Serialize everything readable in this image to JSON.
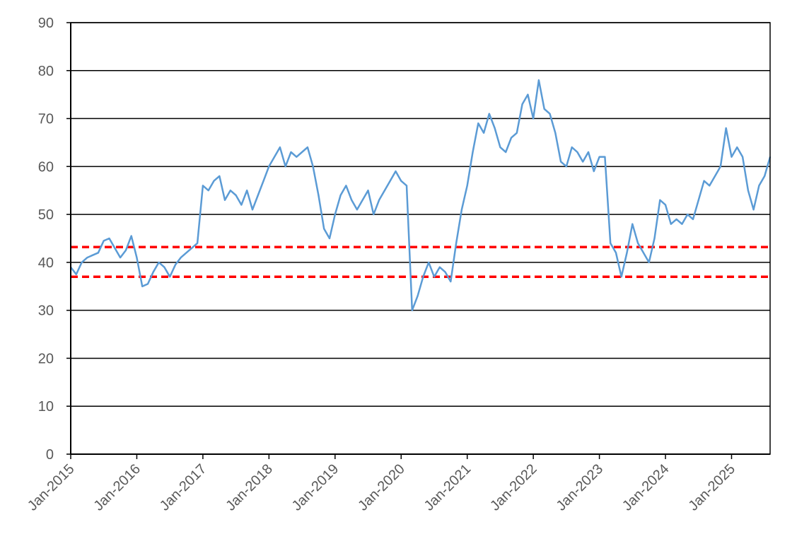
{
  "chart_data": {
    "type": "line",
    "title": "",
    "xlabel": "",
    "ylabel": "",
    "ylim": [
      0,
      90
    ],
    "yticks": [
      0,
      10,
      20,
      30,
      40,
      50,
      60,
      70,
      80,
      90
    ],
    "xlim": [
      "2015-01",
      "2025-08"
    ],
    "xticks": [
      {
        "label": "Jan-2015",
        "date": "2015-01"
      },
      {
        "label": "Jan-2016",
        "date": "2016-01"
      },
      {
        "label": "Jan-2017",
        "date": "2017-01"
      },
      {
        "label": "Jan-2018",
        "date": "2018-01"
      },
      {
        "label": "Jan-2019",
        "date": "2019-01"
      },
      {
        "label": "Jan-2020",
        "date": "2020-01"
      },
      {
        "label": "Jan-2021",
        "date": "2021-01"
      },
      {
        "label": "Jan-2022",
        "date": "2022-01"
      },
      {
        "label": "Jan-2023",
        "date": "2023-01"
      },
      {
        "label": "Jan-2024",
        "date": "2024-01"
      },
      {
        "label": "Jan-2025",
        "date": "2025-01"
      }
    ],
    "grid": "horizontal",
    "legend": "none",
    "series": [
      {
        "color": "#5b9bd5",
        "points": [
          [
            "2015-01",
            39
          ],
          [
            "2015-02",
            37.5
          ],
          [
            "2015-03",
            40
          ],
          [
            "2015-04",
            41
          ],
          [
            "2015-05",
            41.5
          ],
          [
            "2015-06",
            42
          ],
          [
            "2015-07",
            44.5
          ],
          [
            "2015-08",
            45
          ],
          [
            "2015-09",
            43
          ],
          [
            "2015-10",
            41
          ],
          [
            "2015-11",
            42.5
          ],
          [
            "2015-12",
            45.5
          ],
          [
            "2016-01",
            41
          ],
          [
            "2016-02",
            35
          ],
          [
            "2016-03",
            35.5
          ],
          [
            "2016-04",
            38
          ],
          [
            "2016-05",
            40
          ],
          [
            "2016-06",
            39
          ],
          [
            "2016-07",
            37
          ],
          [
            "2016-08",
            39.5
          ],
          [
            "2016-09",
            41
          ],
          [
            "2016-10",
            42
          ],
          [
            "2016-11",
            43
          ],
          [
            "2016-12",
            44
          ],
          [
            "2017-01",
            56
          ],
          [
            "2017-02",
            55
          ],
          [
            "2017-03",
            57
          ],
          [
            "2017-04",
            58
          ],
          [
            "2017-05",
            53
          ],
          [
            "2017-06",
            55
          ],
          [
            "2017-07",
            54
          ],
          [
            "2017-08",
            52
          ],
          [
            "2017-09",
            55
          ],
          [
            "2017-10",
            51
          ],
          [
            "2017-11",
            54
          ],
          [
            "2017-12",
            57
          ],
          [
            "2018-01",
            60
          ],
          [
            "2018-02",
            62
          ],
          [
            "2018-03",
            64
          ],
          [
            "2018-04",
            60
          ],
          [
            "2018-05",
            63
          ],
          [
            "2018-06",
            62
          ],
          [
            "2018-07",
            63
          ],
          [
            "2018-08",
            64
          ],
          [
            "2018-09",
            60
          ],
          [
            "2018-10",
            54
          ],
          [
            "2018-11",
            47
          ],
          [
            "2018-12",
            45
          ],
          [
            "2019-01",
            50
          ],
          [
            "2019-02",
            54
          ],
          [
            "2019-03",
            56
          ],
          [
            "2019-04",
            53
          ],
          [
            "2019-05",
            51
          ],
          [
            "2019-06",
            53
          ],
          [
            "2019-07",
            55
          ],
          [
            "2019-08",
            50
          ],
          [
            "2019-09",
            53
          ],
          [
            "2019-10",
            55
          ],
          [
            "2019-11",
            57
          ],
          [
            "2019-12",
            59
          ],
          [
            "2020-01",
            57
          ],
          [
            "2020-02",
            56
          ],
          [
            "2020-03",
            30
          ],
          [
            "2020-04",
            33
          ],
          [
            "2020-05",
            37
          ],
          [
            "2020-06",
            40
          ],
          [
            "2020-07",
            37
          ],
          [
            "2020-08",
            39
          ],
          [
            "2020-09",
            38
          ],
          [
            "2020-10",
            36
          ],
          [
            "2020-11",
            44
          ],
          [
            "2020-12",
            51
          ],
          [
            "2021-01",
            56
          ],
          [
            "2021-02",
            63
          ],
          [
            "2021-03",
            69
          ],
          [
            "2021-04",
            67
          ],
          [
            "2021-05",
            71
          ],
          [
            "2021-06",
            68
          ],
          [
            "2021-07",
            64
          ],
          [
            "2021-08",
            63
          ],
          [
            "2021-09",
            66
          ],
          [
            "2021-10",
            67
          ],
          [
            "2021-11",
            73
          ],
          [
            "2021-12",
            75
          ],
          [
            "2022-01",
            70
          ],
          [
            "2022-02",
            78
          ],
          [
            "2022-03",
            72
          ],
          [
            "2022-04",
            71
          ],
          [
            "2022-05",
            67
          ],
          [
            "2022-06",
            61
          ],
          [
            "2022-07",
            60
          ],
          [
            "2022-08",
            64
          ],
          [
            "2022-09",
            63
          ],
          [
            "2022-10",
            61
          ],
          [
            "2022-11",
            63
          ],
          [
            "2022-12",
            59
          ],
          [
            "2023-01",
            62
          ],
          [
            "2023-02",
            62
          ],
          [
            "2023-03",
            44
          ],
          [
            "2023-04",
            42
          ],
          [
            "2023-05",
            37
          ],
          [
            "2023-06",
            42
          ],
          [
            "2023-07",
            48
          ],
          [
            "2023-08",
            44
          ],
          [
            "2023-09",
            42
          ],
          [
            "2023-10",
            40
          ],
          [
            "2023-11",
            45
          ],
          [
            "2023-12",
            53
          ],
          [
            "2024-01",
            52
          ],
          [
            "2024-02",
            48
          ],
          [
            "2024-03",
            49
          ],
          [
            "2024-04",
            48
          ],
          [
            "2024-05",
            50
          ],
          [
            "2024-06",
            49
          ],
          [
            "2024-07",
            53
          ],
          [
            "2024-08",
            57
          ],
          [
            "2024-09",
            56
          ],
          [
            "2024-10",
            58
          ],
          [
            "2024-11",
            60
          ],
          [
            "2024-12",
            68
          ],
          [
            "2025-01",
            62
          ],
          [
            "2025-02",
            64
          ],
          [
            "2025-03",
            62
          ],
          [
            "2025-04",
            55
          ],
          [
            "2025-05",
            51
          ],
          [
            "2025-06",
            56
          ],
          [
            "2025-07",
            58
          ],
          [
            "2025-08",
            62
          ]
        ]
      }
    ],
    "reference_lines": [
      {
        "y": 43.2,
        "color": "#ff0000",
        "style": "dashed"
      },
      {
        "y": 37.0,
        "color": "#ff0000",
        "style": "dashed"
      }
    ],
    "colors": {
      "line": "#5b9bd5",
      "reference": "#ff0000",
      "grid": "#000000",
      "text": "#595959"
    }
  }
}
